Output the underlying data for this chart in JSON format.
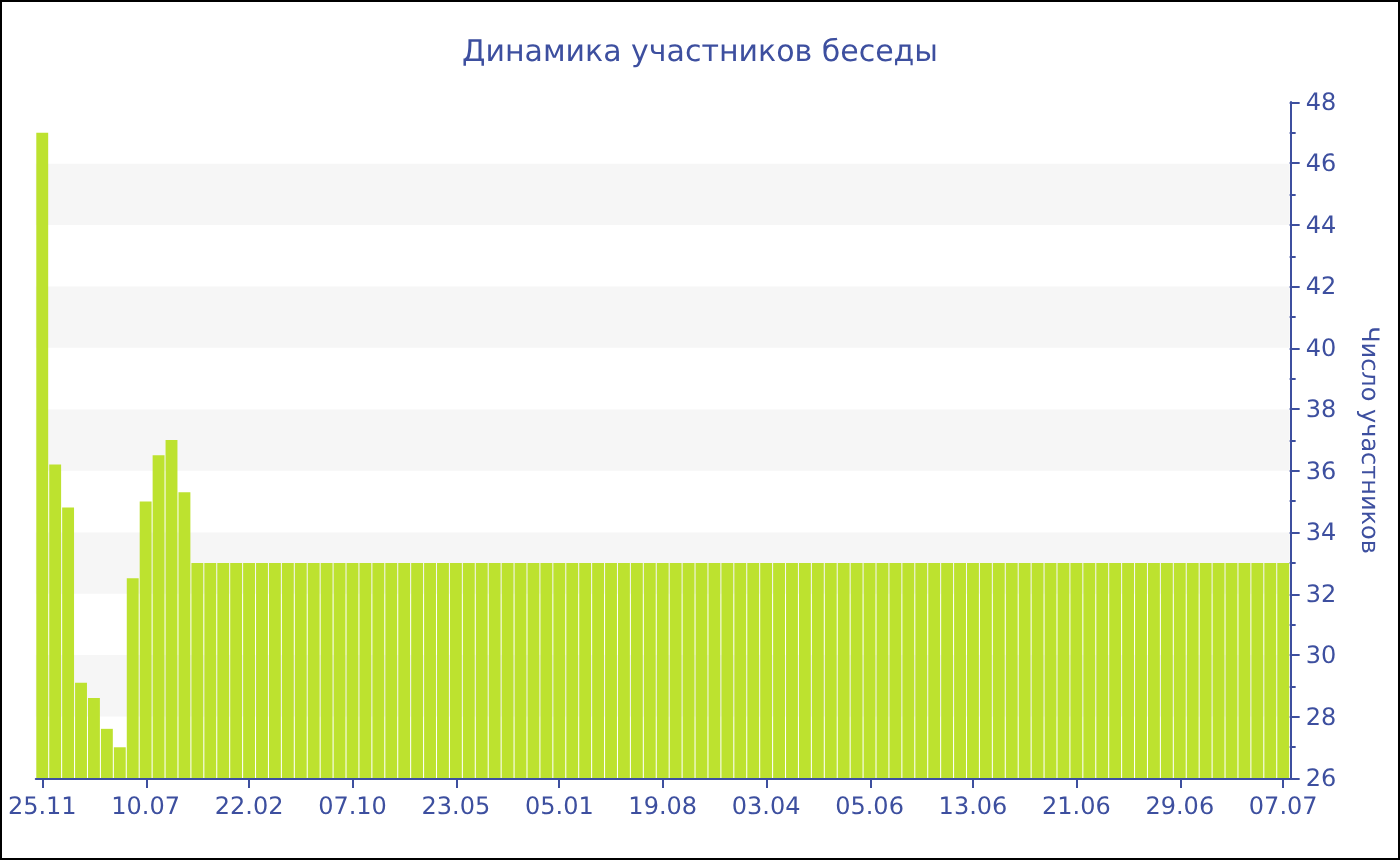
{
  "chart_data": {
    "type": "bar",
    "title": "Динамика участников беседы",
    "ylabel": "Число участников",
    "categories": [
      "25.11",
      null,
      null,
      null,
      null,
      null,
      null,
      null,
      "10.07",
      null,
      null,
      null,
      null,
      null,
      null,
      null,
      "22.02",
      null,
      null,
      null,
      null,
      null,
      null,
      null,
      "07.10",
      null,
      null,
      null,
      null,
      null,
      null,
      null,
      "23.05",
      null,
      null,
      null,
      null,
      null,
      null,
      null,
      "05.01",
      null,
      null,
      null,
      null,
      null,
      null,
      null,
      "19.08",
      null,
      null,
      null,
      null,
      null,
      null,
      null,
      "03.04",
      null,
      null,
      null,
      null,
      null,
      null,
      null,
      "05.06",
      null,
      null,
      null,
      null,
      null,
      null,
      null,
      "13.06",
      null,
      null,
      null,
      null,
      null,
      null,
      null,
      "21.06",
      null,
      null,
      null,
      null,
      null,
      null,
      null,
      "29.06",
      null,
      null,
      null,
      null,
      null,
      null,
      null,
      "07.07"
    ],
    "values": [
      47,
      36.2,
      34.8,
      29.1,
      28.6,
      27.6,
      27.0,
      32.5,
      35.0,
      36.5,
      37.0,
      35.3,
      33,
      33,
      33,
      33,
      33,
      33,
      33,
      33,
      33,
      33,
      33,
      33,
      33,
      33,
      33,
      33,
      33,
      33,
      33,
      33,
      33,
      33,
      33,
      33,
      33,
      33,
      33,
      33,
      33,
      33,
      33,
      33,
      33,
      33,
      33,
      33,
      33,
      33,
      33,
      33,
      33,
      33,
      33,
      33,
      33,
      33,
      33,
      33,
      33,
      33,
      33,
      33,
      33,
      33,
      33,
      33,
      33,
      33,
      33,
      33,
      33,
      33,
      33,
      33,
      33,
      33,
      33,
      33,
      33,
      33,
      33,
      33,
      33,
      33,
      33,
      33,
      33,
      33,
      33,
      33,
      33,
      33,
      33,
      33,
      33
    ],
    "color": "#bde22f",
    "ylim": [
      26,
      48
    ],
    "yticks": [
      26,
      28,
      30,
      32,
      34,
      36,
      38,
      40,
      42,
      44,
      46,
      48
    ]
  }
}
